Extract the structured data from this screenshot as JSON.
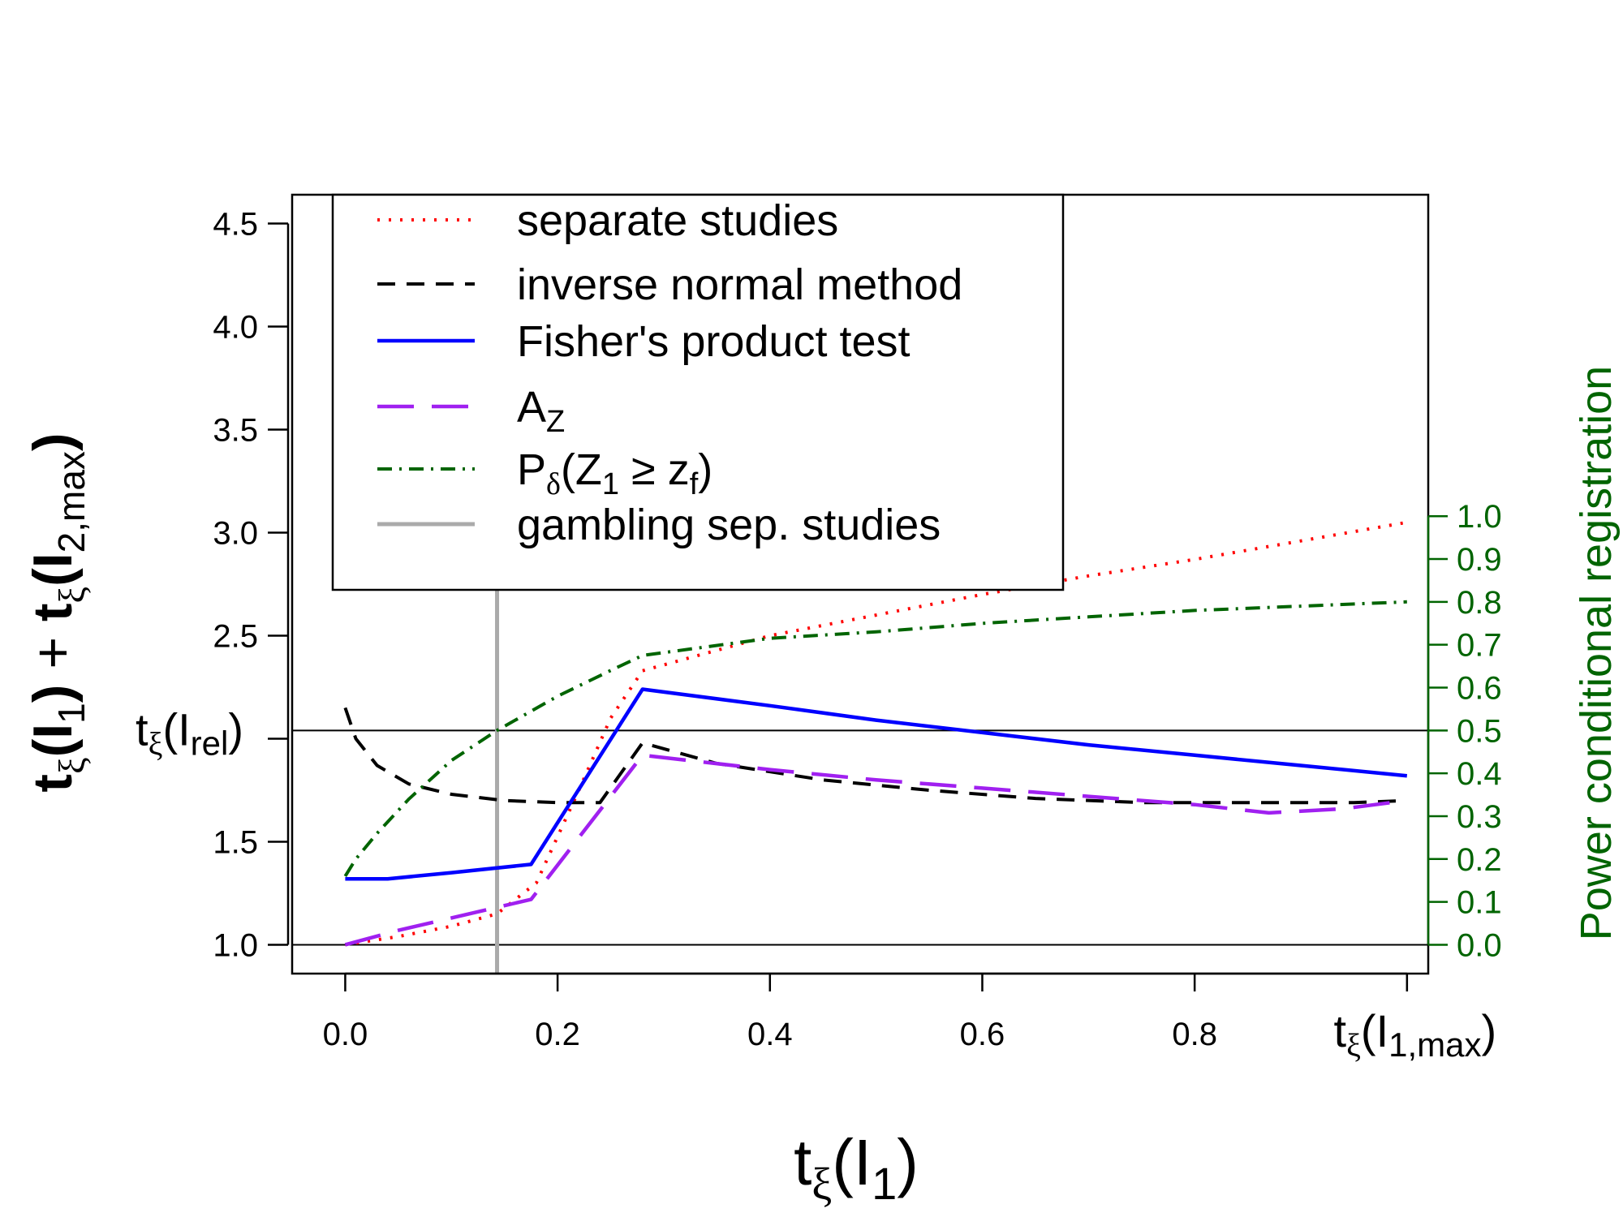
{
  "chart_data": {
    "type": "line",
    "xlabel": {
      "main": "t",
      "sub": "ξ",
      "open": "(",
      "arg": "I",
      "argsub": "1",
      "close": ")"
    },
    "ylabel": {
      "a": "t",
      "a_sub": "ξ",
      "a_open": "(",
      "a_arg": "I",
      "a_argsub": "1",
      "a_close": ")",
      "plus": " + ",
      "b": "t",
      "b_sub": "ξ",
      "b_open": "(",
      "b_arg": "I",
      "b_argsub": "2,max",
      "b_close": ")"
    },
    "y2label": "Power conditional registration",
    "xlim": [
      -0.05,
      1.02
    ],
    "ylim": [
      0.86,
      4.64
    ],
    "y2lim": [
      0,
      1
    ],
    "y2_map": {
      "y_at_0": 1.0,
      "y_at_1": 3.08
    },
    "x_ticks": [
      0.0,
      0.2,
      0.4,
      0.6,
      0.8,
      1.0
    ],
    "x_tick_labels": [
      "0.0",
      "0.2",
      "0.4",
      "0.6",
      "0.8"
    ],
    "y_ticks": [
      1.0,
      1.5,
      2.0,
      2.5,
      3.0,
      3.5,
      4.0,
      4.5
    ],
    "y_tick_labels": [
      "1.0",
      "1.5",
      "",
      "2.5",
      "3.0",
      "3.5",
      "4.0",
      "4.5"
    ],
    "y2_ticks": [
      0.0,
      0.1,
      0.2,
      0.3,
      0.4,
      0.5,
      0.6,
      0.7,
      0.8,
      0.9,
      1.0
    ],
    "y2_tick_labels": [
      "0.0",
      "0.1",
      "0.2",
      "0.3",
      "0.4",
      "0.5",
      "0.6",
      "0.7",
      "0.8",
      "0.9",
      "1.0"
    ],
    "x_special_label": {
      "main": "t",
      "sub": "ξ",
      "open": "(",
      "arg": "I",
      "argsub": "1,max",
      "close": ")",
      "x": 1.0
    },
    "y_special_label": {
      "main": "t",
      "sub": "ξ",
      "open": "(",
      "arg": "I",
      "argsub": "rel",
      "close": ")",
      "y": 2.04
    },
    "hlines": [
      1.0,
      2.04
    ],
    "vlines": [
      {
        "x": 0.143,
        "color": "#aaaaaa"
      }
    ],
    "series": [
      {
        "name": "separate studies",
        "color": "#ff0000",
        "dash": "3,11",
        "width": 4,
        "axis": "left",
        "x": [
          0.0,
          0.05,
          0.1,
          0.143,
          0.18,
          0.22,
          0.25,
          0.28,
          0.4,
          0.5,
          0.6,
          0.7,
          0.8,
          0.9,
          1.0
        ],
        "y": [
          1.0,
          1.04,
          1.09,
          1.15,
          1.3,
          1.75,
          2.1,
          2.33,
          2.5,
          2.6,
          2.7,
          2.79,
          2.87,
          2.96,
          3.05
        ]
      },
      {
        "name": "inverse normal method",
        "color": "#000000",
        "dash": "22,14",
        "width": 4,
        "axis": "left",
        "x": [
          0.0,
          0.01,
          0.03,
          0.06,
          0.1,
          0.15,
          0.2,
          0.24,
          0.28,
          0.35,
          0.45,
          0.55,
          0.65,
          0.75,
          0.85,
          0.95,
          1.0
        ],
        "y": [
          2.15,
          2.0,
          1.87,
          1.78,
          1.73,
          1.7,
          1.69,
          1.69,
          1.98,
          1.88,
          1.8,
          1.75,
          1.71,
          1.69,
          1.69,
          1.69,
          1.7
        ]
      },
      {
        "name": "Fisher's product test",
        "color": "#0000ff",
        "dash": "",
        "width": 4.5,
        "axis": "left",
        "x": [
          0.0,
          0.04,
          0.1,
          0.175,
          0.28,
          0.4,
          0.5,
          0.6,
          0.7,
          0.8,
          0.9,
          1.0
        ],
        "y": [
          1.32,
          1.32,
          1.35,
          1.39,
          2.24,
          2.16,
          2.09,
          2.03,
          1.97,
          1.92,
          1.87,
          1.82
        ]
      },
      {
        "name": "A",
        "legend_sub": "Z",
        "color": "#a020f0",
        "dash": "45,22",
        "width": 4.5,
        "axis": "left",
        "x": [
          0.0,
          0.05,
          0.1,
          0.175,
          0.28,
          0.4,
          0.5,
          0.6,
          0.7,
          0.8,
          0.87,
          0.94,
          1.0
        ],
        "y": [
          1.0,
          1.07,
          1.13,
          1.22,
          1.92,
          1.85,
          1.8,
          1.76,
          1.72,
          1.68,
          1.64,
          1.66,
          1.7
        ]
      },
      {
        "name": "P",
        "legend_sub": "δ",
        "legend_rest": "(Z",
        "legend_rest_sub": "1",
        "legend_rest2": " ≥ z",
        "legend_rest2_sub": "f",
        "legend_rest3": ")",
        "color": "#006400",
        "dash": "18,9,3,9",
        "width": 4,
        "axis": "right",
        "x": [
          0.0,
          0.01,
          0.03,
          0.06,
          0.1,
          0.143,
          0.2,
          0.25,
          0.28,
          0.4,
          0.5,
          0.6,
          0.7,
          0.8,
          0.9,
          1.0
        ],
        "y": [
          0.16,
          0.2,
          0.26,
          0.34,
          0.43,
          0.5,
          0.58,
          0.64,
          0.675,
          0.715,
          0.73,
          0.75,
          0.765,
          0.78,
          0.79,
          0.8
        ]
      },
      {
        "name": "gambling sep. studies",
        "color": "#aaaaaa",
        "dash": "",
        "width": 5,
        "axis": "none",
        "x": [],
        "y": []
      }
    ]
  },
  "colors": {
    "axis": "#000000",
    "right_axis": "#006400",
    "legend_border": "#000000"
  }
}
